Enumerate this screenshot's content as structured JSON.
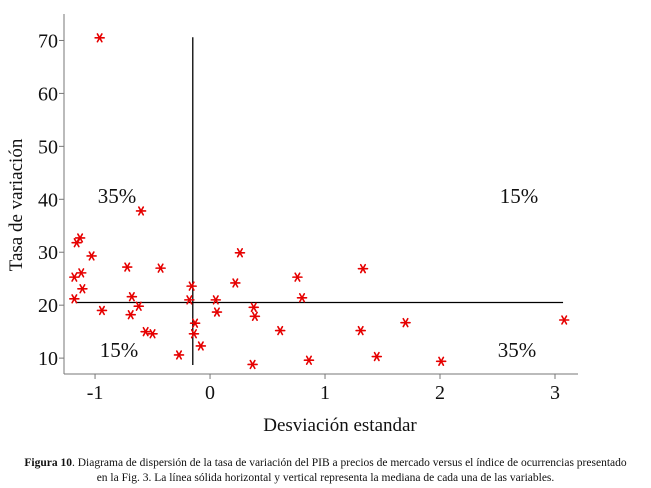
{
  "chart_data": {
    "type": "scatter",
    "xlabel": "Desviación estandar",
    "ylabel": "Tasa de variación",
    "xlim": [
      -1.27,
      3.2
    ],
    "ylim": [
      7,
      75
    ],
    "xticks": [
      -1,
      0,
      1,
      2,
      3
    ],
    "yticks": [
      10,
      20,
      30,
      40,
      50,
      60,
      70
    ],
    "marker": "*",
    "marker_color": "#e60000",
    "median_x": -0.15,
    "median_y": 20.5,
    "quadrant_labels": [
      {
        "text": "35%",
        "quadrant": "top-left"
      },
      {
        "text": "15%",
        "quadrant": "top-right"
      },
      {
        "text": "15%",
        "quadrant": "bottom-left"
      },
      {
        "text": "35%",
        "quadrant": "bottom-right"
      }
    ],
    "points": [
      {
        "x": -0.96,
        "y": 70.5
      },
      {
        "x": -0.6,
        "y": 37.8
      },
      {
        "x": -1.13,
        "y": 32.7
      },
      {
        "x": -1.16,
        "y": 31.8
      },
      {
        "x": -1.03,
        "y": 29.3
      },
      {
        "x": -0.72,
        "y": 27.2
      },
      {
        "x": -0.43,
        "y": 27.0
      },
      {
        "x": -1.12,
        "y": 26.1
      },
      {
        "x": -1.18,
        "y": 25.3
      },
      {
        "x": -1.11,
        "y": 23.1
      },
      {
        "x": -0.68,
        "y": 21.6
      },
      {
        "x": -1.18,
        "y": 21.2
      },
      {
        "x": -0.62,
        "y": 19.8
      },
      {
        "x": -0.94,
        "y": 19.0
      },
      {
        "x": -0.69,
        "y": 18.2
      },
      {
        "x": -0.56,
        "y": 15.0
      },
      {
        "x": -0.5,
        "y": 14.6
      },
      {
        "x": -0.27,
        "y": 10.6
      },
      {
        "x": 0.26,
        "y": 29.9
      },
      {
        "x": 0.22,
        "y": 24.2
      },
      {
        "x": -0.16,
        "y": 23.6
      },
      {
        "x": -0.18,
        "y": 21.0
      },
      {
        "x": 0.05,
        "y": 21.0
      },
      {
        "x": 0.38,
        "y": 19.6
      },
      {
        "x": 0.06,
        "y": 18.7
      },
      {
        "x": 0.39,
        "y": 17.9
      },
      {
        "x": -0.13,
        "y": 16.6
      },
      {
        "x": -0.14,
        "y": 14.6
      },
      {
        "x": -0.08,
        "y": 12.3
      },
      {
        "x": 0.37,
        "y": 8.8
      },
      {
        "x": 0.61,
        "y": 15.2
      },
      {
        "x": 0.76,
        "y": 25.3
      },
      {
        "x": 0.8,
        "y": 21.4
      },
      {
        "x": 0.86,
        "y": 9.6
      },
      {
        "x": 1.33,
        "y": 26.9
      },
      {
        "x": 1.31,
        "y": 15.2
      },
      {
        "x": 1.45,
        "y": 10.3
      },
      {
        "x": 1.7,
        "y": 16.7
      },
      {
        "x": 2.01,
        "y": 9.4
      },
      {
        "x": 3.08,
        "y": 17.2
      }
    ]
  },
  "caption": {
    "label": "Figura 10",
    "text": ". Diagrama de dispersión de la tasa de variación del PIB a precios de mercado versus el índice de ocurrencias presentado en la Fig. 3. La línea sólida horizontal y vertical representa la mediana de cada una de las variables."
  }
}
